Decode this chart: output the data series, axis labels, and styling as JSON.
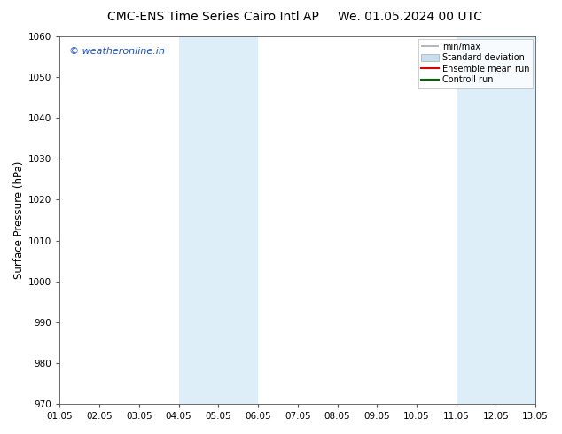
{
  "title_left": "CMC-ENS Time Series Cairo Intl AP",
  "title_right": "We. 01.05.2024 00 UTC",
  "ylabel": "Surface Pressure (hPa)",
  "ylim": [
    970,
    1060
  ],
  "yticks": [
    970,
    980,
    990,
    1000,
    1010,
    1020,
    1030,
    1040,
    1050,
    1060
  ],
  "xlim_start": 0,
  "xlim_end": 12,
  "xtick_labels": [
    "01.05",
    "02.05",
    "03.05",
    "04.05",
    "05.05",
    "06.05",
    "07.05",
    "08.05",
    "09.05",
    "10.05",
    "11.05",
    "12.05",
    "13.05"
  ],
  "shaded_regions": [
    {
      "xstart": 3,
      "xend": 5,
      "color": "#ddeef8"
    },
    {
      "xstart": 10,
      "xend": 12,
      "color": "#ddeef8"
    }
  ],
  "watermark": "© weatheronline.in",
  "watermark_color": "#1a52c4",
  "legend_entries": [
    {
      "label": "min/max",
      "color": "#aaaaaa",
      "type": "minmax"
    },
    {
      "label": "Standard deviation",
      "color": "#c8dff0",
      "type": "fill"
    },
    {
      "label": "Ensemble mean run",
      "color": "#dd0000",
      "type": "line"
    },
    {
      "label": "Controll run",
      "color": "#006600",
      "type": "line"
    }
  ],
  "bg_color": "#ffffff",
  "plot_bg_color": "#ffffff",
  "border_color": "#555555",
  "tick_color": "#555555",
  "title_fontsize": 10,
  "axis_label_fontsize": 8.5,
  "tick_fontsize": 7.5,
  "watermark_fontsize": 8
}
